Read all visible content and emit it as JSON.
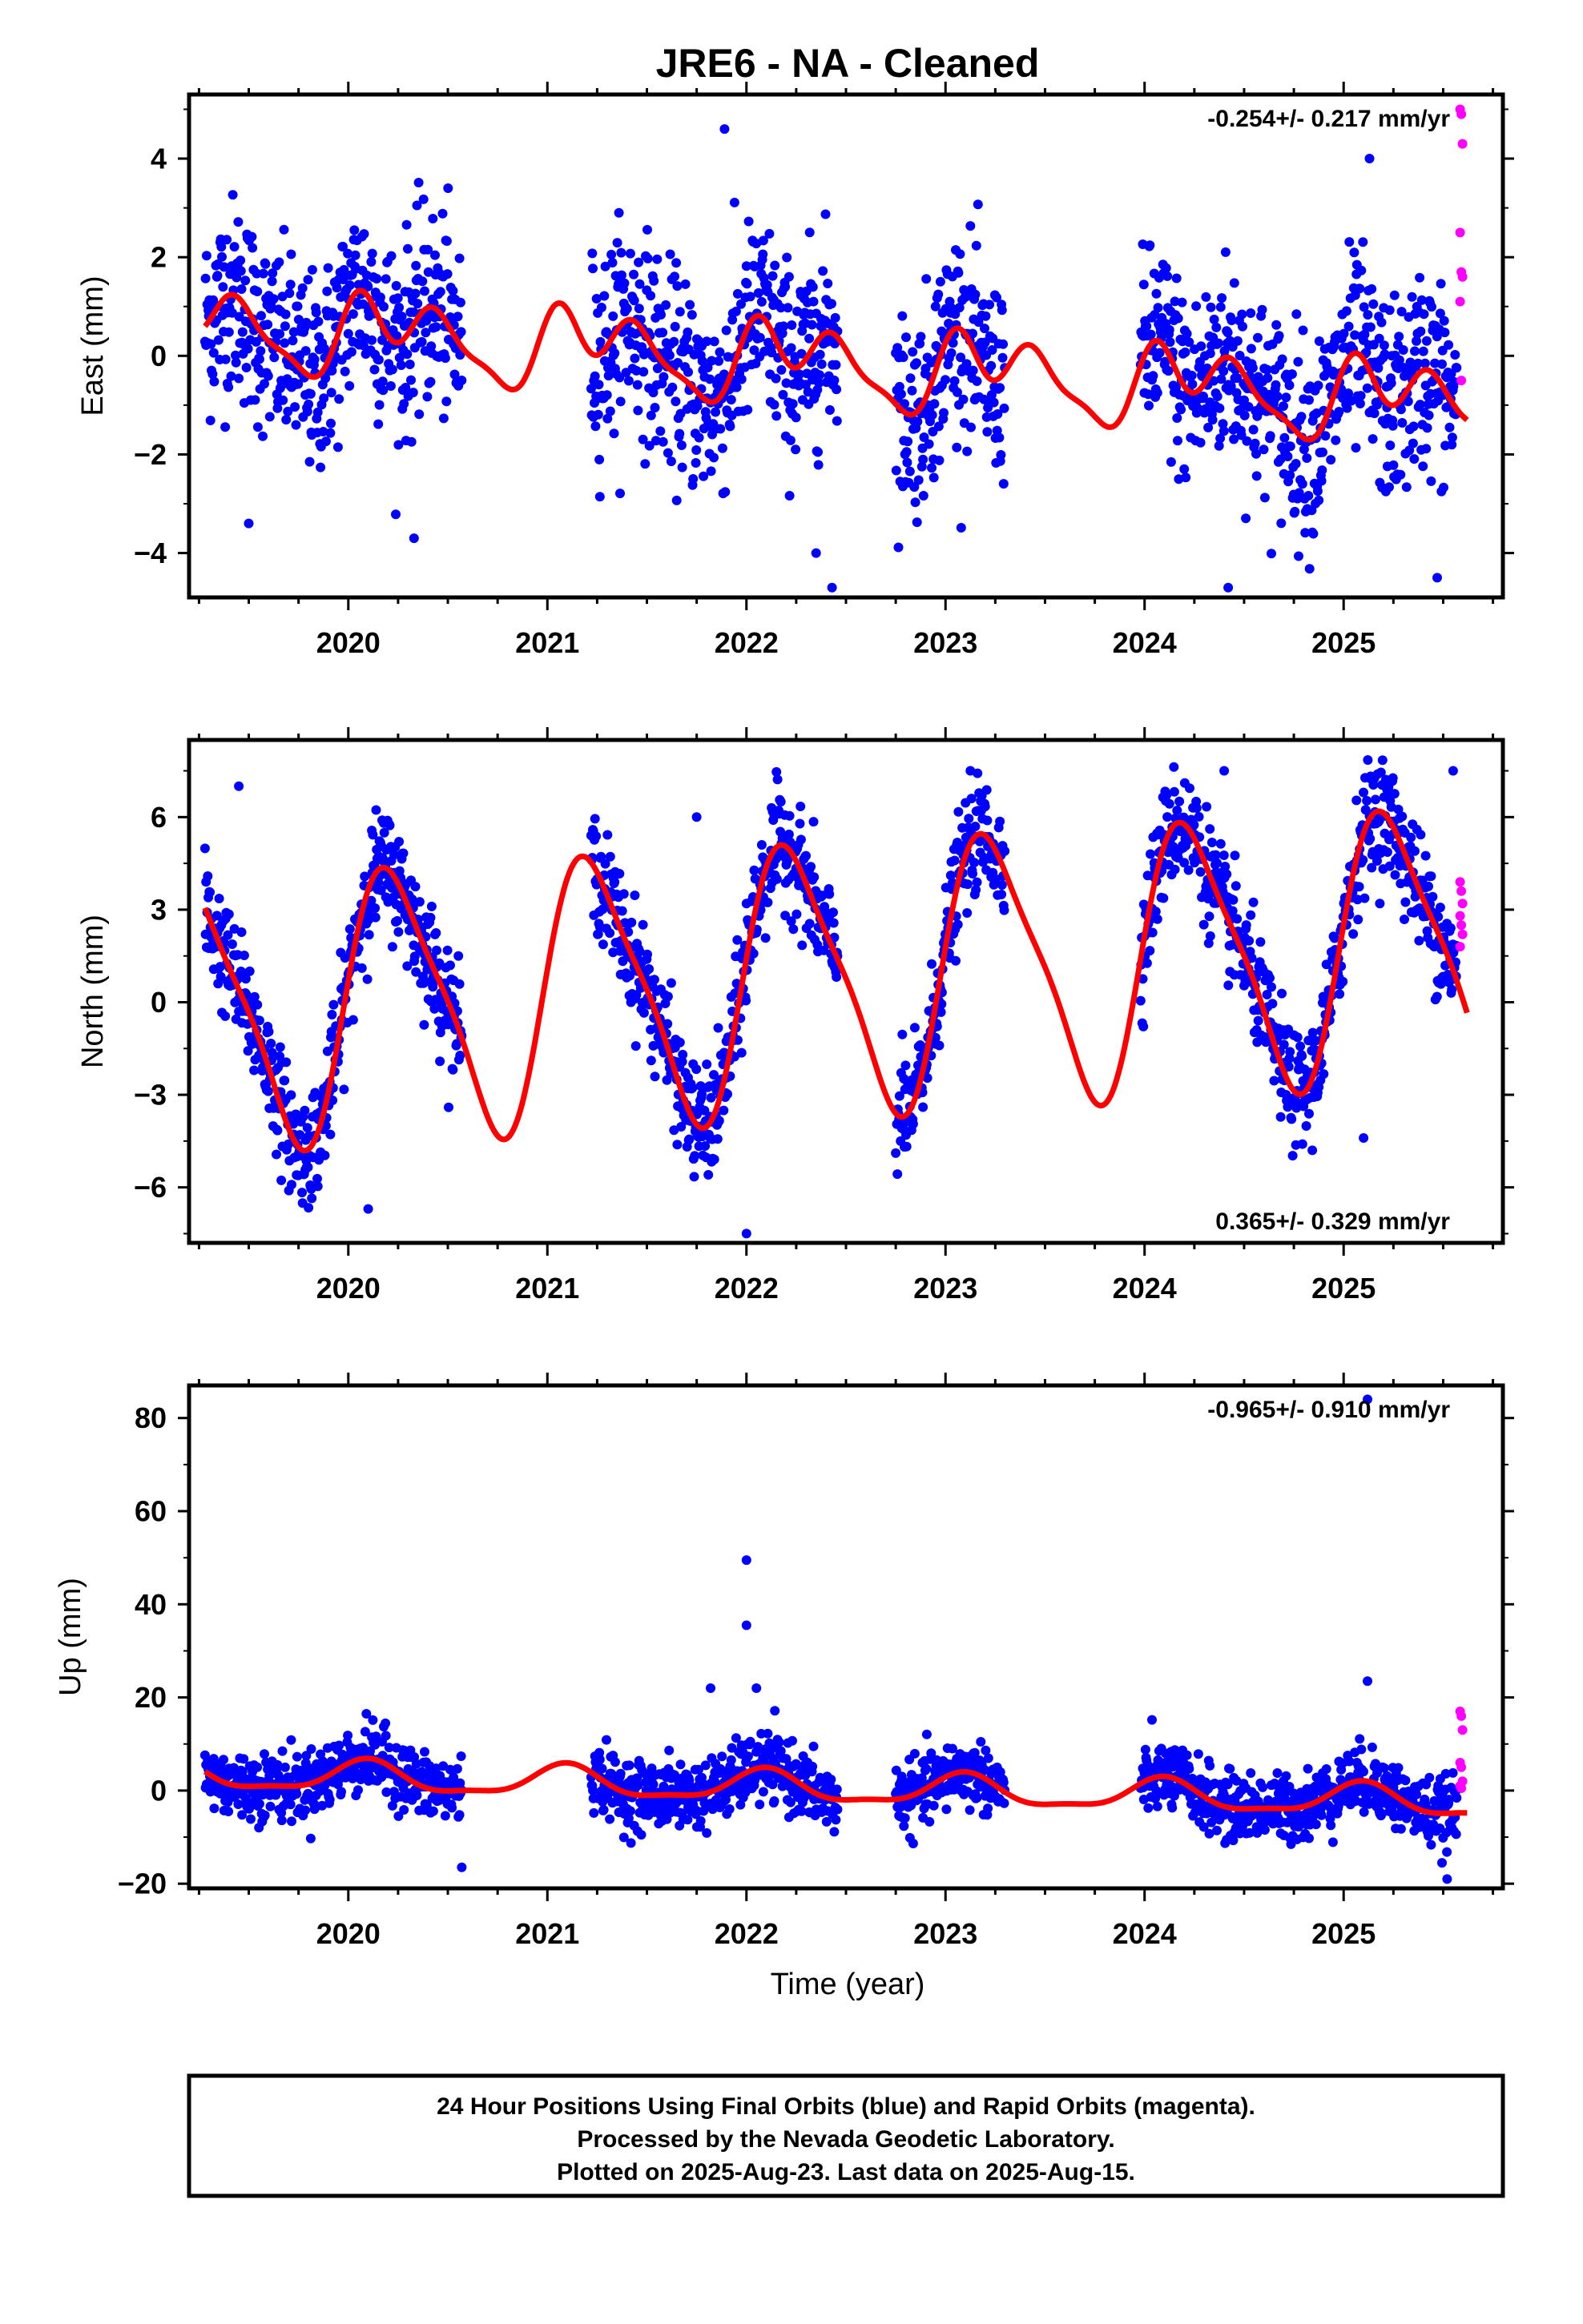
{
  "chart_data": {
    "title": "JRE6  - NA - Cleaned",
    "panels": [
      {
        "type": "scatter",
        "ylabel": "East (mm)",
        "rate_text": "-0.254+/- 0.217 mm/yr",
        "rate_position": "top-right",
        "x_ticks": [
          "2020",
          "2021",
          "2022",
          "2023",
          "2024",
          "2025"
        ],
        "y_ticks": [
          "4",
          "2",
          "0",
          "−2",
          "−4"
        ],
        "xlim": [
          2019.2,
          2025.8
        ],
        "ylim": [
          -4.9,
          5.3
        ],
        "segments": [
          [
            2019.28,
            2020.57
          ],
          [
            2021.22,
            2022.46
          ],
          [
            2022.75,
            2023.3
          ],
          [
            2023.98,
            2025.57
          ]
        ],
        "fit_model": {
          "offset": -0.15,
          "trend": -0.254,
          "t0": 2022.4,
          "terms": [
            [
              0.55,
              0.0,
              1
            ],
            [
              0.45,
              1.3,
              2
            ],
            [
              0.28,
              0.5,
              3
            ]
          ]
        },
        "noise": 1.0,
        "outliers": [
          [
            2019.5,
            -3.4
          ],
          [
            2020.33,
            -3.7
          ],
          [
            2021.89,
            4.6
          ],
          [
            2022.35,
            -4.0
          ],
          [
            2022.43,
            -4.7
          ],
          [
            2024.42,
            -4.7
          ],
          [
            2025.13,
            4.0
          ],
          [
            2025.47,
            -4.5
          ]
        ],
        "rapid_values": [
          5.0,
          4.9,
          4.3,
          2.5,
          1.7,
          1.6,
          1.1,
          -0.5
        ]
      },
      {
        "type": "scatter",
        "ylabel": "North (mm)",
        "rate_text": "0.365+/- 0.329 mm/yr",
        "rate_position": "bottom-right",
        "x_ticks": [
          "2020",
          "2021",
          "2022",
          "2023",
          "2024",
          "2025"
        ],
        "y_ticks": [
          "6",
          "3",
          "0",
          "−3",
          "−6"
        ],
        "xlim": [
          2019.2,
          2025.8
        ],
        "ylim": [
          -7.8,
          8.5
        ],
        "segments": [
          [
            2019.28,
            2020.57
          ],
          [
            2021.22,
            2022.46
          ],
          [
            2022.75,
            2023.3
          ],
          [
            2023.98,
            2025.57
          ]
        ],
        "fit_model": {
          "offset": 0.8,
          "trend": 0.365,
          "t0": 2022.4,
          "terms": [
            [
              4.2,
              0.1,
              1
            ],
            [
              0.9,
              0.4,
              2
            ]
          ]
        },
        "noise": 0.9,
        "outliers": [
          [
            2019.45,
            7.0
          ],
          [
            2020.1,
            -6.7
          ],
          [
            2021.75,
            6.0
          ],
          [
            2022.0,
            -7.5
          ],
          [
            2022.0,
            3.2
          ],
          [
            2025.1,
            -4.4
          ],
          [
            2025.55,
            7.5
          ],
          [
            2024.4,
            7.5
          ]
        ],
        "rapid_values": [
          3.9,
          3.6,
          3.2,
          2.8,
          2.5,
          2.2,
          1.8
        ]
      },
      {
        "type": "scatter",
        "ylabel": "Up (mm)",
        "rate_text": "-0.965+/- 0.910 mm/yr",
        "rate_position": "top-right",
        "xlabel": "Time (year)",
        "x_ticks": [
          "2020",
          "2021",
          "2022",
          "2023",
          "2024",
          "2025"
        ],
        "y_ticks": [
          "80",
          "60",
          "40",
          "20",
          "0",
          "−20"
        ],
        "xlim": [
          2019.2,
          2025.8
        ],
        "ylim": [
          -21.0,
          87.0
        ],
        "segments": [
          [
            2019.28,
            2020.57
          ],
          [
            2021.22,
            2022.46
          ],
          [
            2022.75,
            2023.3
          ],
          [
            2023.98,
            2025.57
          ]
        ],
        "fit_model": {
          "offset": 0.5,
          "trend": -0.965,
          "t0": 2022.4,
          "terms": [
            [
              3.2,
              1.0,
              1
            ],
            [
              1.0,
              0.3,
              2
            ]
          ]
        },
        "noise": 3.5,
        "outliers": [
          [
            2022.0,
            49.5
          ],
          [
            2022.0,
            35.5
          ],
          [
            2025.12,
            84.0
          ],
          [
            2025.12,
            23.5
          ],
          [
            2021.82,
            22.0
          ],
          [
            2022.05,
            22.0
          ],
          [
            2020.57,
            -16.5
          ],
          [
            2025.52,
            -19.0
          ]
        ],
        "rapid_values": [
          17.0,
          16.0,
          13.0,
          6.0,
          5.0,
          2.0,
          1.0,
          0.5
        ]
      }
    ]
  },
  "footer": {
    "line1": "24 Hour Positions Using Final Orbits (blue) and Rapid Orbits (magenta).",
    "line2": "Processed by the Nevada Geodetic Laboratory.",
    "line3": "Plotted on 2025-Aug-23. Last data on 2025-Aug-15."
  },
  "colors": {
    "final_orbit": "#0000ff",
    "rapid_orbit": "#ff00ff",
    "fit": "#ff0000",
    "frame": "#000000"
  }
}
